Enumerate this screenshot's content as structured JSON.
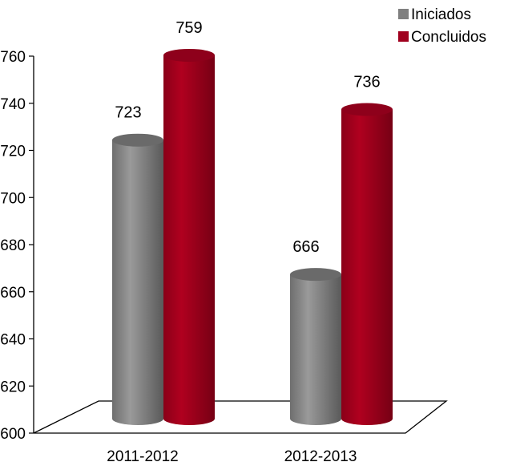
{
  "chart_data": {
    "type": "bar",
    "style": "3d-cylinder",
    "categories": [
      "2011-2012",
      "2012-2013"
    ],
    "series": [
      {
        "name": "Iniciados",
        "values": [
          723,
          666
        ],
        "color": "#7f7f7f"
      },
      {
        "name": "Concluidos",
        "values": [
          759,
          736
        ],
        "color": "#a0001e"
      }
    ],
    "y_ticks": [
      "600",
      "620",
      "640",
      "660",
      "680",
      "700",
      "720",
      "740",
      "760"
    ],
    "ylim": [
      600,
      760
    ],
    "data_labels": [
      [
        "723",
        "666"
      ],
      [
        "759",
        "736"
      ]
    ],
    "grid": false,
    "legend": "top-right"
  }
}
